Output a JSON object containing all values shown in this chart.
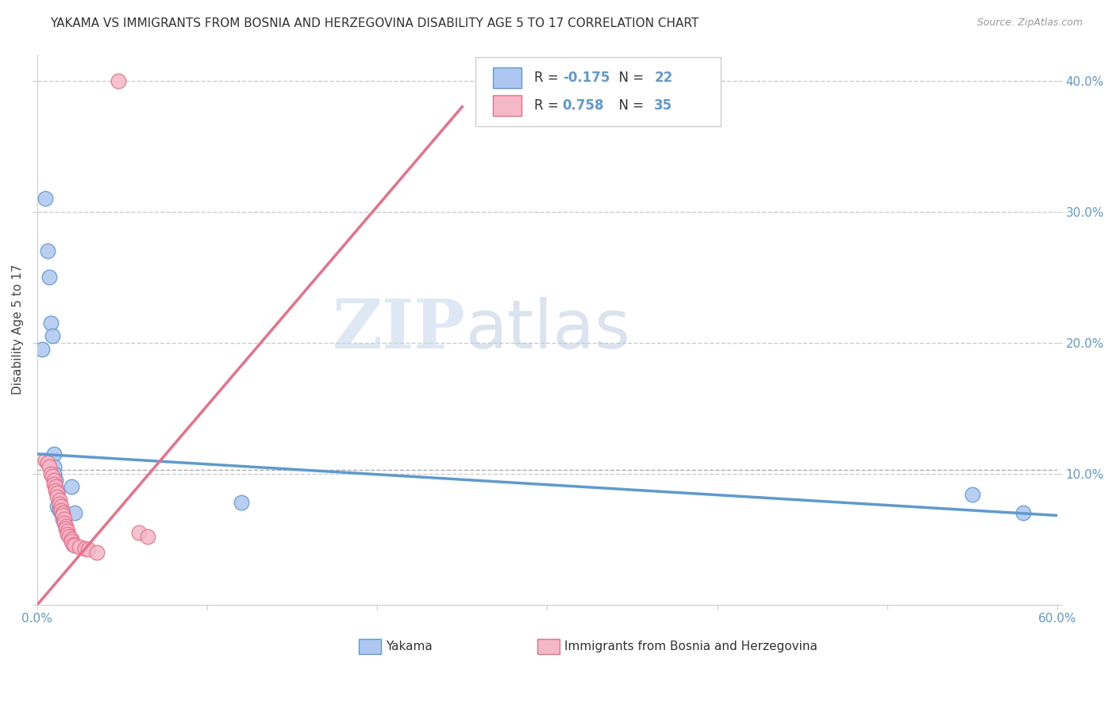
{
  "title": "YAKAMA VS IMMIGRANTS FROM BOSNIA AND HERZEGOVINA DISABILITY AGE 5 TO 17 CORRELATION CHART",
  "source": "Source: ZipAtlas.com",
  "ylabel": "Disability Age 5 to 17",
  "xlim": [
    0,
    0.6
  ],
  "ylim": [
    0,
    0.42
  ],
  "xticks": [
    0.0,
    0.1,
    0.2,
    0.3,
    0.4,
    0.5,
    0.6
  ],
  "yticks": [
    0.1,
    0.2,
    0.3,
    0.4
  ],
  "yakama_R": "-0.175",
  "yakama_N": "22",
  "bosnia_R": "0.758",
  "bosnia_N": "35",
  "watermark_zip": "ZIP",
  "watermark_atlas": "atlas",
  "yakama_scatter": [
    [
      0.003,
      0.195
    ],
    [
      0.005,
      0.31
    ],
    [
      0.006,
      0.27
    ],
    [
      0.007,
      0.25
    ],
    [
      0.008,
      0.215
    ],
    [
      0.009,
      0.205
    ],
    [
      0.01,
      0.115
    ],
    [
      0.01,
      0.105
    ],
    [
      0.01,
      0.1
    ],
    [
      0.011,
      0.095
    ],
    [
      0.012,
      0.085
    ],
    [
      0.012,
      0.075
    ],
    [
      0.013,
      0.075
    ],
    [
      0.013,
      0.072
    ],
    [
      0.014,
      0.07
    ],
    [
      0.015,
      0.068
    ],
    [
      0.015,
      0.065
    ],
    [
      0.02,
      0.09
    ],
    [
      0.022,
      0.07
    ],
    [
      0.12,
      0.078
    ],
    [
      0.55,
      0.084
    ],
    [
      0.58,
      0.07
    ]
  ],
  "bosnia_scatter": [
    [
      0.048,
      0.4
    ],
    [
      0.005,
      0.11
    ],
    [
      0.006,
      0.108
    ],
    [
      0.007,
      0.105
    ],
    [
      0.008,
      0.1
    ],
    [
      0.009,
      0.098
    ],
    [
      0.01,
      0.095
    ],
    [
      0.01,
      0.092
    ],
    [
      0.011,
      0.09
    ],
    [
      0.011,
      0.087
    ],
    [
      0.012,
      0.085
    ],
    [
      0.012,
      0.082
    ],
    [
      0.013,
      0.08
    ],
    [
      0.013,
      0.077
    ],
    [
      0.014,
      0.075
    ],
    [
      0.014,
      0.072
    ],
    [
      0.015,
      0.07
    ],
    [
      0.015,
      0.068
    ],
    [
      0.016,
      0.065
    ],
    [
      0.016,
      0.062
    ],
    [
      0.017,
      0.06
    ],
    [
      0.017,
      0.058
    ],
    [
      0.018,
      0.056
    ],
    [
      0.018,
      0.054
    ],
    [
      0.019,
      0.052
    ],
    [
      0.02,
      0.05
    ],
    [
      0.02,
      0.048
    ],
    [
      0.021,
      0.046
    ],
    [
      0.022,
      0.045
    ],
    [
      0.025,
      0.044
    ],
    [
      0.028,
      0.043
    ],
    [
      0.03,
      0.042
    ],
    [
      0.035,
      0.04
    ],
    [
      0.06,
      0.055
    ],
    [
      0.065,
      0.052
    ]
  ],
  "yakama_line_x": [
    0.0,
    0.6
  ],
  "yakama_line_y": [
    0.115,
    0.068
  ],
  "bosnia_line_x": [
    -0.005,
    0.25
  ],
  "bosnia_line_y": [
    -0.008,
    0.38
  ],
  "mean_line_y": 0.103,
  "yakama_color": "#5b9bd5",
  "bosnia_color": "#e8708a",
  "yakama_fill": "#aec6f0",
  "bosnia_fill": "#f4b8c8",
  "title_fontsize": 11,
  "axis_label_fontsize": 11,
  "tick_fontsize": 11,
  "marker_size": 180
}
